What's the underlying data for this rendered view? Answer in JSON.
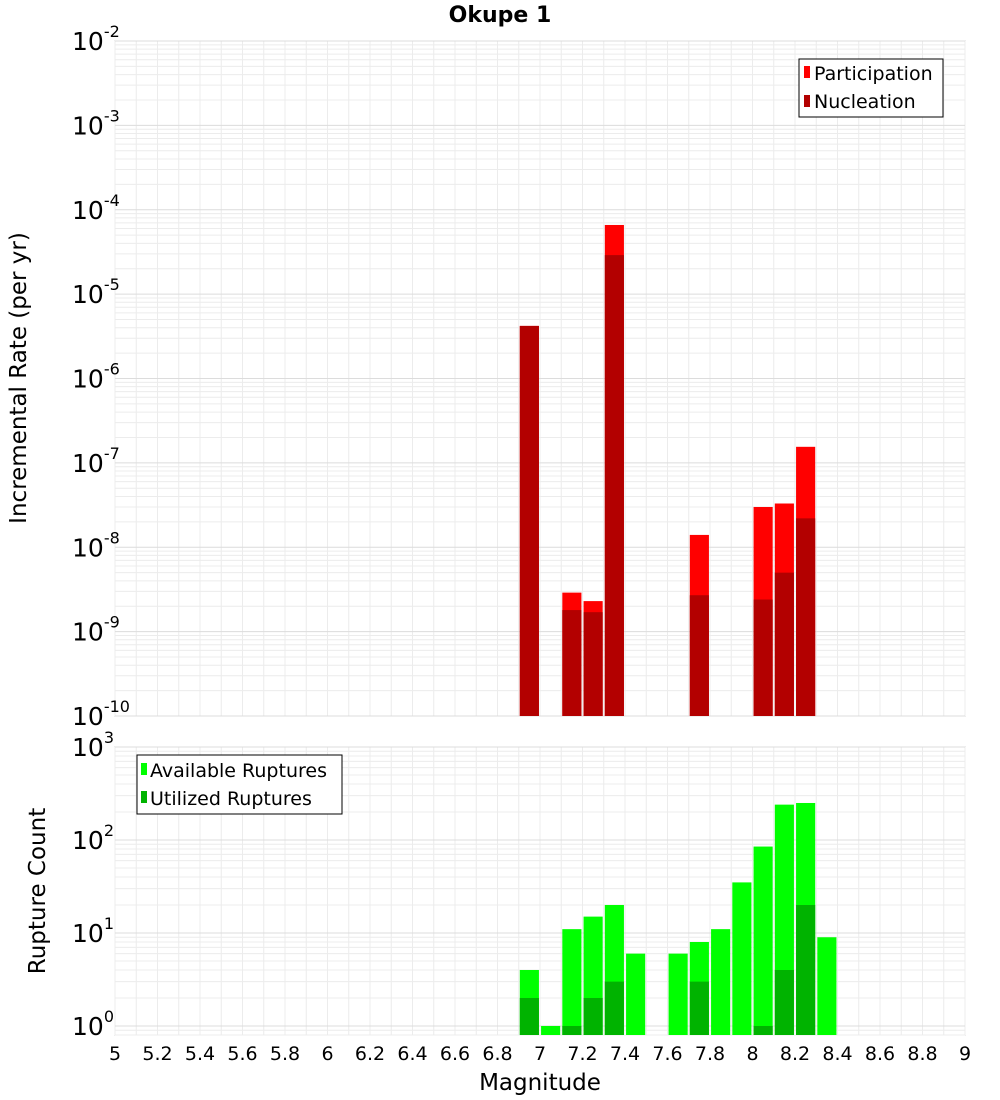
{
  "chart_data": {
    "title": "Okupe 1",
    "xlabel": "Magnitude",
    "xlim": [
      5,
      9
    ],
    "x_ticks": [
      "5",
      "5.2",
      "5.4",
      "5.6",
      "5.8",
      "6",
      "6.2",
      "6.4",
      "6.6",
      "6.8",
      "7",
      "7.2",
      "7.4",
      "7.6",
      "7.8",
      "8",
      "8.2",
      "8.4",
      "8.6",
      "8.8",
      "9"
    ],
    "grid": true,
    "bar_width": 0.09,
    "panels": [
      {
        "type": "bar",
        "ylabel": "Incremental Rate (per yr)",
        "yscale": "log",
        "ylim": [
          1e-10,
          0.01
        ],
        "y_ticks": [
          {
            "base": "10",
            "exp": "-10"
          },
          {
            "base": "10",
            "exp": "-9"
          },
          {
            "base": "10",
            "exp": "-8"
          },
          {
            "base": "10",
            "exp": "-7"
          },
          {
            "base": "10",
            "exp": "-6"
          },
          {
            "base": "10",
            "exp": "-5"
          },
          {
            "base": "10",
            "exp": "-4"
          },
          {
            "base": "10",
            "exp": "-3"
          },
          {
            "base": "10",
            "exp": "-2"
          }
        ],
        "legend_position": "top-right",
        "series": [
          {
            "name": "Participation",
            "color": "#ff0000",
            "x": [
              6.95,
              7.15,
              7.25,
              7.35,
              7.75,
              8.05,
              8.15,
              8.25
            ],
            "values": [
              4.2e-06,
              2.9e-09,
              2.3e-09,
              6.6e-05,
              1.4e-08,
              3e-08,
              3.3e-08,
              1.55e-07
            ]
          },
          {
            "name": "Nucleation",
            "color": "#b30000",
            "x": [
              6.95,
              7.15,
              7.25,
              7.35,
              7.75,
              8.05,
              8.15,
              8.25
            ],
            "values": [
              4.2e-06,
              1.8e-09,
              1.7e-09,
              2.9e-05,
              2.7e-09,
              2.4e-09,
              5e-09,
              2.2e-08
            ]
          }
        ]
      },
      {
        "type": "bar",
        "ylabel": "Rupture Count",
        "yscale": "log",
        "ylim": [
          0.8,
          1000
        ],
        "y_ticks": [
          {
            "base": "10",
            "exp": "0"
          },
          {
            "base": "10",
            "exp": "1"
          },
          {
            "base": "10",
            "exp": "2"
          },
          {
            "base": "10",
            "exp": "3"
          }
        ],
        "legend_position": "top-left",
        "series": [
          {
            "name": "Available Ruptures",
            "color": "#00ff00",
            "x": [
              6.95,
              7.05,
              7.15,
              7.25,
              7.35,
              7.45,
              7.65,
              7.75,
              7.85,
              7.95,
              8.05,
              8.15,
              8.25,
              8.35
            ],
            "values": [
              4,
              1,
              11,
              15,
              20,
              6,
              6,
              8,
              11,
              35,
              85,
              240,
              250,
              9
            ]
          },
          {
            "name": "Utilized Ruptures",
            "color": "#00b300",
            "x": [
              6.95,
              7.05,
              7.15,
              7.25,
              7.35,
              7.45,
              7.65,
              7.75,
              7.85,
              7.95,
              8.05,
              8.15,
              8.25,
              8.35
            ],
            "values": [
              2,
              0,
              1,
              2,
              3,
              0,
              0,
              3,
              0,
              0,
              1,
              4,
              20,
              0
            ]
          }
        ]
      }
    ]
  }
}
